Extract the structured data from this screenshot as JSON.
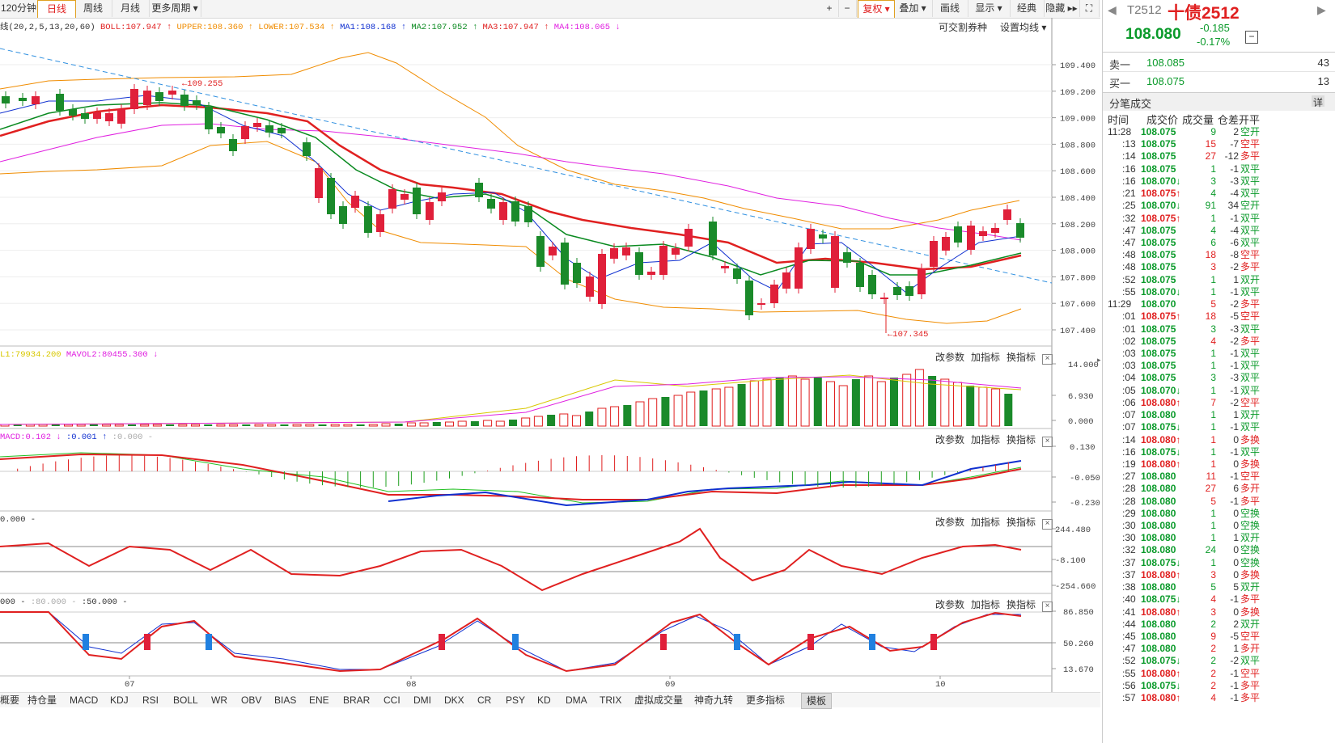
{
  "toolbar": {
    "periods": [
      "120分钟",
      "日线",
      "周线",
      "月线",
      "更多周期"
    ],
    "active_period": "日线",
    "right_tools": [
      "复权",
      "叠加",
      "画线",
      "显示",
      "经典",
      "隐藏"
    ]
  },
  "main_chart": {
    "legend_prefix": "线(20,2,5,13,20,60)",
    "legend": [
      {
        "text": "BOLL:107.947",
        "color": "#e02020",
        "arrow": "↑"
      },
      {
        "text": "UPPER:108.360",
        "color": "#f08c00",
        "arrow": "↑"
      },
      {
        "text": "LOWER:107.534",
        "color": "#f08c00",
        "arrow": "↑"
      },
      {
        "text": "MA1:108.168",
        "color": "#1030d0",
        "arrow": "↑"
      },
      {
        "text": "MA2:107.952",
        "color": "#0a8a20",
        "arrow": "↑"
      },
      {
        "text": "MA3:107.947",
        "color": "#e02020",
        "arrow": "↑"
      },
      {
        "text": "MA4:108.065",
        "color": "#e020e0",
        "arrow": "↓"
      }
    ],
    "actions": [
      "可交割券种",
      "设置均线"
    ],
    "y_ticks": [
      "109.400",
      "109.200",
      "109.000",
      "108.800",
      "108.600",
      "108.400",
      "108.200",
      "108.000",
      "107.800",
      "107.600",
      "107.400"
    ],
    "annotation_high": "109.255",
    "annotation_low": "107.345"
  },
  "vol_panel": {
    "legend": [
      {
        "text": "L1:79934.200",
        "color": "#d8c800"
      },
      {
        "text": "MAVOL2:80455.300",
        "color": "#e020e0",
        "arrow": "↓"
      }
    ],
    "y_ticks": [
      "14.000",
      "6.930",
      "0.000"
    ]
  },
  "macd_panel": {
    "legend": [
      {
        "text": "MACD:0.102",
        "color": "#e020e0",
        "arrow": "↓"
      },
      {
        "text": ":0.001",
        "color": "#1030d0",
        "arrow": "↑"
      },
      {
        "text": ":0.000",
        "color": "#aaa",
        "arrow": "-"
      }
    ],
    "y_ticks": [
      "0.130",
      "-0.050",
      "-0.230"
    ]
  },
  "cci_panel": {
    "legend": [
      {
        "text": "0.000",
        "color": "#333",
        "arrow": "-"
      }
    ],
    "y_ticks": [
      "244.480",
      "-8.100",
      "-254.660"
    ]
  },
  "kd_panel": {
    "legend": [
      {
        "text": "000",
        "color": "#333",
        "arrow": "-"
      },
      {
        "text": ":80.000",
        "color": "#aaa",
        "arrow": "-"
      },
      {
        "text": ":50.000",
        "color": "#333",
        "arrow": "-"
      }
    ],
    "y_ticks": [
      "86.850",
      "50.260",
      "13.670"
    ]
  },
  "panel_actions": [
    "改参数",
    "加指标",
    "换指标"
  ],
  "x_axis": [
    "07",
    "08",
    "09",
    "10"
  ],
  "bottom_tabs": [
    "概要",
    "持仓量",
    "MACD",
    "KDJ",
    "RSI",
    "BOLL",
    "WR",
    "OBV",
    "BIAS",
    "ENE",
    "BRAR",
    "CCI",
    "DMI",
    "DKX",
    "CR",
    "PSY",
    "KD",
    "DMA",
    "TRIX",
    "虚拟成交量",
    "神奇九转",
    "更多指标",
    "模板"
  ],
  "quote": {
    "code": "T2512",
    "name": "十债2512",
    "price": "108.080",
    "change": "-0.185",
    "change_pct": "-0.17%",
    "ask_label": "卖一",
    "ask_price": "108.085",
    "ask_vol": "43",
    "bid_label": "买一",
    "bid_price": "108.075",
    "bid_vol": "13",
    "trades_title": "分笔成交",
    "detail": "详",
    "headers": [
      "时间",
      "成交价",
      "成交量",
      "仓差",
      "开平"
    ]
  },
  "trades": [
    [
      "11:28",
      "108.075",
      "",
      "9",
      "2",
      "空开"
    ],
    [
      ":13",
      "108.075",
      "",
      "15",
      "-7",
      "空平"
    ],
    [
      ":14",
      "108.075",
      "",
      "27",
      "-12",
      "多平"
    ],
    [
      ":16",
      "108.075",
      "",
      "1",
      "-1",
      "双平"
    ],
    [
      ":16",
      "108.070",
      "↓",
      "3",
      "-3",
      "双平"
    ],
    [
      ":21",
      "108.075",
      "↑",
      "4",
      "-4",
      "双平"
    ],
    [
      ":25",
      "108.070",
      "↓",
      "91",
      "34",
      "空开"
    ],
    [
      ":32",
      "108.075",
      "↑",
      "1",
      "-1",
      "双平"
    ],
    [
      ":47",
      "108.075",
      "",
      "4",
      "-4",
      "双平"
    ],
    [
      ":47",
      "108.075",
      "",
      "6",
      "-6",
      "双平"
    ],
    [
      ":48",
      "108.075",
      "",
      "18",
      "-8",
      "空平"
    ],
    [
      ":48",
      "108.075",
      "",
      "3",
      "-2",
      "多平"
    ],
    [
      ":52",
      "108.075",
      "",
      "1",
      "1",
      "双开"
    ],
    [
      ":55",
      "108.070",
      "↓",
      "1",
      "-1",
      "双平"
    ],
    [
      "11:29",
      "108.070",
      "",
      "5",
      "-2",
      "多平"
    ],
    [
      ":01",
      "108.075",
      "↑",
      "18",
      "-5",
      "空平"
    ],
    [
      ":01",
      "108.075",
      "",
      "3",
      "-3",
      "双平"
    ],
    [
      ":02",
      "108.075",
      "",
      "4",
      "-2",
      "多平"
    ],
    [
      ":03",
      "108.075",
      "",
      "1",
      "-1",
      "双平"
    ],
    [
      ":03",
      "108.075",
      "",
      "1",
      "-1",
      "双平"
    ],
    [
      ":04",
      "108.075",
      "",
      "3",
      "-3",
      "双平"
    ],
    [
      ":05",
      "108.070",
      "↓",
      "1",
      "-1",
      "双平"
    ],
    [
      ":06",
      "108.080",
      "↑",
      "7",
      "-2",
      "空平"
    ],
    [
      ":07",
      "108.080",
      "",
      "1",
      "1",
      "双开"
    ],
    [
      ":07",
      "108.075",
      "↓",
      "1",
      "-1",
      "双平"
    ],
    [
      ":14",
      "108.080",
      "↑",
      "1",
      "0",
      "多换"
    ],
    [
      ":16",
      "108.075",
      "↓",
      "1",
      "-1",
      "双平"
    ],
    [
      ":19",
      "108.080",
      "↑",
      "1",
      "0",
      "多换"
    ],
    [
      ":27",
      "108.080",
      "",
      "11",
      "-1",
      "空平"
    ],
    [
      ":28",
      "108.080",
      "",
      "27",
      "6",
      "多开"
    ],
    [
      ":28",
      "108.080",
      "",
      "5",
      "-1",
      "多平"
    ],
    [
      ":29",
      "108.080",
      "",
      "1",
      "0",
      "空换"
    ],
    [
      ":30",
      "108.080",
      "",
      "1",
      "0",
      "空换"
    ],
    [
      ":30",
      "108.080",
      "",
      "1",
      "1",
      "双开"
    ],
    [
      ":32",
      "108.080",
      "",
      "24",
      "0",
      "空换"
    ],
    [
      ":37",
      "108.075",
      "↓",
      "1",
      "0",
      "空换"
    ],
    [
      ":37",
      "108.080",
      "↑",
      "3",
      "0",
      "多换"
    ],
    [
      ":38",
      "108.080",
      "",
      "5",
      "5",
      "双开"
    ],
    [
      ":40",
      "108.075",
      "↓",
      "4",
      "-1",
      "多平"
    ],
    [
      ":41",
      "108.080",
      "↑",
      "3",
      "0",
      "多换"
    ],
    [
      ":44",
      "108.080",
      "",
      "2",
      "2",
      "双开"
    ],
    [
      ":45",
      "108.080",
      "",
      "9",
      "-5",
      "空平"
    ],
    [
      ":47",
      "108.080",
      "",
      "2",
      "1",
      "多开"
    ],
    [
      ":52",
      "108.075",
      "↓",
      "2",
      "-2",
      "双平"
    ],
    [
      ":55",
      "108.080",
      "↑",
      "2",
      "-1",
      "空平"
    ],
    [
      ":56",
      "108.075",
      "↓",
      "2",
      "-1",
      "多平"
    ],
    [
      ":57",
      "108.080",
      "↑",
      "4",
      "-1",
      "多平"
    ]
  ]
}
